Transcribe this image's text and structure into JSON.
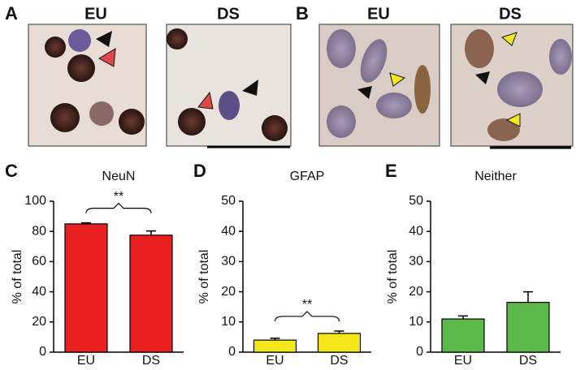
{
  "panel_labels": [
    "A",
    "B",
    "C",
    "D",
    "E"
  ],
  "image_labels": [
    "EU",
    "DS",
    "EU",
    "DS"
  ],
  "chart_data": [
    {
      "type": "bar",
      "title": "NeuN",
      "ylabel": "% of total",
      "categories": [
        "EU",
        "DS"
      ],
      "values": [
        85,
        77.5
      ],
      "errors": [
        0.7,
        2.8
      ],
      "color": "#e82020",
      "ylim": [
        0,
        100
      ],
      "yticks": [
        0,
        20,
        40,
        60,
        80,
        100
      ],
      "annotation": "**"
    },
    {
      "type": "bar",
      "title": "GFAP",
      "ylabel": "% of total",
      "categories": [
        "EU",
        "DS"
      ],
      "values": [
        4,
        6.2
      ],
      "errors": [
        0.6,
        0.8
      ],
      "color": "#f2e81c",
      "ylim": [
        0,
        50
      ],
      "yticks": [
        0,
        10,
        20,
        30,
        40,
        50
      ],
      "annotation": "**"
    },
    {
      "type": "bar",
      "title": "Neither",
      "ylabel": "% of total",
      "categories": [
        "EU",
        "DS"
      ],
      "values": [
        11,
        16.5
      ],
      "errors": [
        1,
        3.5
      ],
      "color": "#5cb84a",
      "ylim": [
        0,
        50
      ],
      "yticks": [
        0,
        10,
        20,
        30,
        40,
        50
      ]
    }
  ]
}
